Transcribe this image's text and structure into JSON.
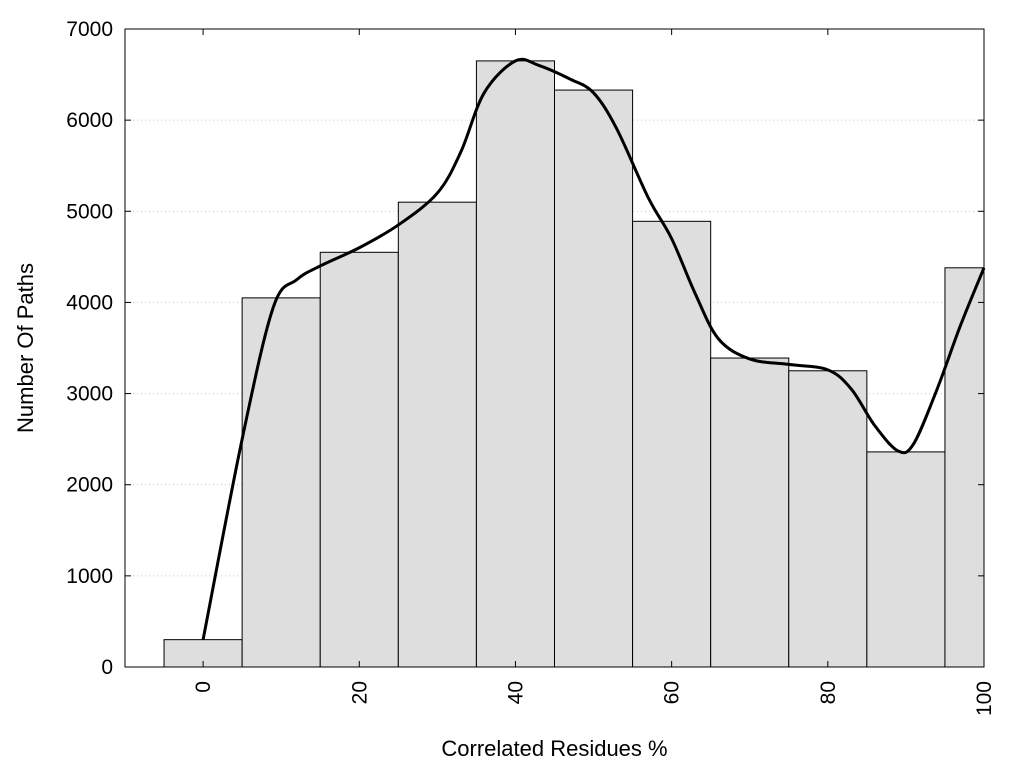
{
  "chart_data": {
    "type": "bar",
    "xlabel": "Correlated Residues %",
    "ylabel": "Number Of Paths",
    "xlim": [
      -10,
      100
    ],
    "ylim": [
      0,
      7000
    ],
    "grid": "horizontal-dotted",
    "x_ticks": [
      "0",
      "20",
      "40",
      "60",
      "80",
      "100"
    ],
    "y_ticks": [
      "0",
      "1000",
      "2000",
      "3000",
      "4000",
      "5000",
      "6000",
      "7000"
    ],
    "bins": [
      {
        "from": -5,
        "to": 5,
        "value": 300
      },
      {
        "from": 5,
        "to": 15,
        "value": 4050
      },
      {
        "from": 15,
        "to": 25,
        "value": 4550
      },
      {
        "from": 25,
        "to": 35,
        "value": 5100
      },
      {
        "from": 35,
        "to": 45,
        "value": 6650
      },
      {
        "from": 45,
        "to": 55,
        "value": 6330
      },
      {
        "from": 55,
        "to": 65,
        "value": 4890
      },
      {
        "from": 65,
        "to": 75,
        "value": 3390
      },
      {
        "from": 75,
        "to": 85,
        "value": 3250
      },
      {
        "from": 85,
        "to": 95,
        "value": 2360
      },
      {
        "from": 95,
        "to": 100,
        "value": 4380
      }
    ],
    "curve": {
      "x": [
        0,
        5,
        9,
        12,
        15,
        20,
        25,
        30,
        33,
        36,
        40,
        43,
        47,
        50,
        53,
        57,
        60,
        63,
        66,
        70,
        75,
        80,
        83,
        86,
        89,
        91,
        94,
        97,
        100
      ],
      "y": [
        300,
        2500,
        3950,
        4250,
        4400,
        4600,
        4850,
        5200,
        5650,
        6300,
        6650,
        6600,
        6450,
        6300,
        5900,
        5150,
        4700,
        4100,
        3600,
        3380,
        3320,
        3260,
        3050,
        2650,
        2370,
        2450,
        3050,
        3750,
        4380
      ]
    },
    "colors": {
      "bar_fill": "#dedede",
      "bar_stroke": "#000000",
      "curve": "#000000",
      "grid": "#c8c8c8"
    }
  }
}
